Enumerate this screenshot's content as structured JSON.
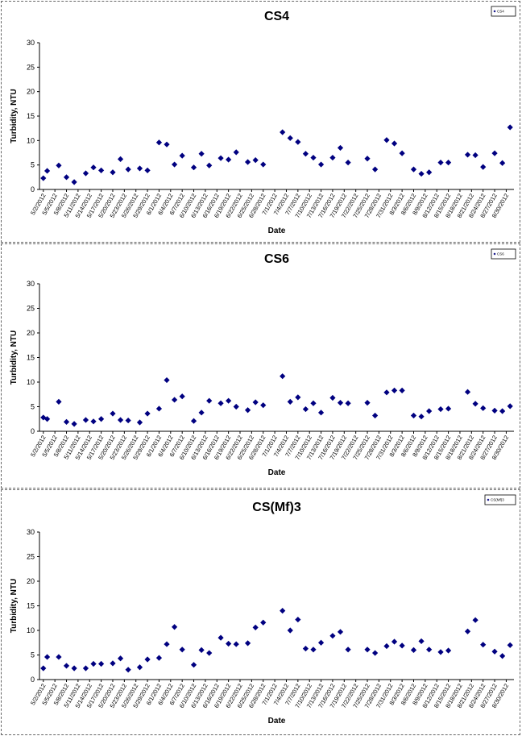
{
  "chart_data": [
    {
      "type": "scatter",
      "title": "CS4",
      "xlabel": "Date",
      "ylabel": "Turbidity, NTU",
      "ylim": [
        0,
        30
      ],
      "yticks": [
        0,
        5,
        10,
        15,
        20,
        25,
        30
      ],
      "legend": "top-right",
      "marker_color": "#000080",
      "x_tick_labels": [
        "5/2/2012",
        "5/5/2012",
        "5/8/2012",
        "5/11/2012",
        "5/14/2012",
        "5/17/2012",
        "5/20/2012",
        "5/23/2012",
        "5/26/2012",
        "5/29/2012",
        "6/1/2012",
        "6/4/2012",
        "6/7/2012",
        "6/10/2012",
        "6/13/2012",
        "6/16/2012",
        "6/19/2012",
        "6/22/2012",
        "6/25/2012",
        "6/28/2012",
        "7/1/2012",
        "7/4/2012",
        "7/7/2012",
        "7/10/2012",
        "7/13/2012",
        "7/16/2012",
        "7/19/2012",
        "7/22/2012",
        "7/25/2012",
        "7/28/2012",
        "7/31/2012",
        "8/3/2012",
        "8/6/2012",
        "8/9/2012",
        "8/12/2012",
        "8/15/2012",
        "8/18/2012",
        "8/21/2012",
        "8/24/2012",
        "8/27/2012",
        "8/30/2012"
      ],
      "series": [
        {
          "name": "CS4",
          "x": [
            "5/2/2012",
            "5/3/2012",
            "5/6/2012",
            "5/8/2012",
            "5/10/2012",
            "5/13/2012",
            "5/15/2012",
            "5/17/2012",
            "5/20/2012",
            "5/22/2012",
            "5/24/2012",
            "5/27/2012",
            "5/29/2012",
            "6/1/2012",
            "6/3/2012",
            "6/5/2012",
            "6/7/2012",
            "6/10/2012",
            "6/12/2012",
            "6/14/2012",
            "6/17/2012",
            "6/19/2012",
            "6/21/2012",
            "6/24/2012",
            "6/26/2012",
            "6/28/2012",
            "7/3/2012",
            "7/5/2012",
            "7/7/2012",
            "7/9/2012",
            "7/11/2012",
            "7/13/2012",
            "7/16/2012",
            "7/18/2012",
            "7/20/2012",
            "7/25/2012",
            "7/27/2012",
            "7/30/2012",
            "8/1/2012",
            "8/3/2012",
            "8/6/2012",
            "8/8/2012",
            "8/10/2012",
            "8/13/2012",
            "8/15/2012",
            "8/20/2012",
            "8/22/2012",
            "8/24/2012",
            "8/27/2012",
            "8/29/2012",
            "8/31/2012"
          ],
          "y": [
            2.3,
            3.8,
            4.9,
            2.5,
            1.5,
            3.3,
            4.5,
            3.9,
            3.5,
            6.2,
            4.1,
            4.3,
            3.9,
            9.6,
            9.2,
            5.1,
            6.9,
            4.5,
            7.3,
            4.9,
            6.4,
            6.1,
            7.6,
            5.6,
            6.0,
            5.1,
            11.7,
            10.5,
            9.7,
            7.3,
            6.5,
            5.1,
            6.5,
            8.5,
            5.5,
            6.3,
            4.1,
            10.1,
            9.4,
            7.4,
            4.1,
            3.2,
            3.5,
            5.5,
            5.5,
            7.1,
            7.0,
            4.6,
            7.4,
            5.4,
            12.7
          ]
        }
      ]
    },
    {
      "type": "scatter",
      "title": "CS6",
      "xlabel": "Date",
      "ylabel": "Turbidity, NTU",
      "ylim": [
        0,
        30
      ],
      "yticks": [
        0,
        5,
        10,
        15,
        20,
        25,
        30
      ],
      "legend": "top-right",
      "marker_color": "#000080",
      "x_tick_labels": [
        "5/2/2012",
        "5/5/2012",
        "5/8/2012",
        "5/11/2012",
        "5/14/2012",
        "5/17/2012",
        "5/20/2012",
        "5/23/2012",
        "5/26/2012",
        "5/29/2012",
        "6/1/2012",
        "6/4/2012",
        "6/7/2012",
        "6/10/2012",
        "6/13/2012",
        "6/16/2012",
        "6/19/2012",
        "6/22/2012",
        "6/25/2012",
        "6/28/2012",
        "7/1/2012",
        "7/4/2012",
        "7/7/2012",
        "7/10/2012",
        "7/13/2012",
        "7/16/2012",
        "7/19/2012",
        "7/22/2012",
        "7/25/2012",
        "7/28/2012",
        "7/31/2012",
        "8/3/2012",
        "8/6/2012",
        "8/9/2012",
        "8/12/2012",
        "8/15/2012",
        "8/18/2012",
        "8/21/2012",
        "8/24/2012",
        "8/27/2012",
        "8/30/2012"
      ],
      "series": [
        {
          "name": "CS6",
          "x": [
            "5/2/2012",
            "5/3/2012",
            "5/6/2012",
            "5/8/2012",
            "5/10/2012",
            "5/13/2012",
            "5/15/2012",
            "5/17/2012",
            "5/20/2012",
            "5/22/2012",
            "5/24/2012",
            "5/27/2012",
            "5/29/2012",
            "6/1/2012",
            "6/3/2012",
            "6/5/2012",
            "6/7/2012",
            "6/10/2012",
            "6/12/2012",
            "6/14/2012",
            "6/17/2012",
            "6/19/2012",
            "6/21/2012",
            "6/24/2012",
            "6/26/2012",
            "6/28/2012",
            "7/3/2012",
            "7/5/2012",
            "7/7/2012",
            "7/9/2012",
            "7/11/2012",
            "7/13/2012",
            "7/16/2012",
            "7/18/2012",
            "7/20/2012",
            "7/25/2012",
            "7/27/2012",
            "7/30/2012",
            "8/1/2012",
            "8/3/2012",
            "8/6/2012",
            "8/8/2012",
            "8/10/2012",
            "8/13/2012",
            "8/15/2012",
            "8/20/2012",
            "8/22/2012",
            "8/24/2012",
            "8/27/2012",
            "8/29/2012",
            "8/31/2012"
          ],
          "y": [
            2.8,
            2.5,
            6.0,
            1.9,
            1.5,
            2.3,
            2.0,
            2.5,
            3.6,
            2.3,
            2.2,
            1.8,
            3.6,
            4.6,
            10.4,
            6.4,
            7.1,
            2.1,
            3.8,
            6.2,
            5.7,
            6.2,
            5.0,
            4.3,
            5.9,
            5.3,
            11.2,
            6.0,
            6.9,
            4.5,
            5.7,
            3.8,
            6.8,
            5.8,
            5.7,
            5.8,
            3.2,
            7.9,
            8.3,
            8.3,
            3.2,
            3.0,
            4.1,
            4.5,
            4.6,
            8.0,
            5.6,
            4.7,
            4.2,
            4.1,
            5.1
          ]
        }
      ]
    },
    {
      "type": "scatter",
      "title": "CS(Mf)3",
      "xlabel": "Date",
      "ylabel": "Turbidity, NTU",
      "ylim": [
        0,
        30
      ],
      "yticks": [
        0,
        5,
        10,
        15,
        20,
        25,
        30
      ],
      "legend": "top-right",
      "marker_color": "#000080",
      "x_tick_labels": [
        "5/2/2012",
        "5/5/2012",
        "5/8/2012",
        "5/11/2012",
        "5/14/2012",
        "5/17/2012",
        "5/20/2012",
        "5/23/2012",
        "5/26/2012",
        "5/29/2012",
        "6/1/2012",
        "6/4/2012",
        "6/7/2012",
        "6/10/2012",
        "6/13/2012",
        "6/16/2012",
        "6/19/2012",
        "6/22/2012",
        "6/25/2012",
        "6/28/2012",
        "7/1/2012",
        "7/4/2012",
        "7/7/2012",
        "7/10/2012",
        "7/13/2012",
        "7/16/2012",
        "7/19/2012",
        "7/22/2012",
        "7/25/2012",
        "7/28/2012",
        "7/31/2012",
        "8/3/2012",
        "8/6/2012",
        "8/9/2012",
        "8/12/2012",
        "8/15/2012",
        "8/18/2012",
        "8/21/2012",
        "8/24/2012",
        "8/27/2012",
        "8/30/2012"
      ],
      "series": [
        {
          "name": "CS(Mf)3",
          "x": [
            "5/2/2012",
            "5/3/2012",
            "5/6/2012",
            "5/8/2012",
            "5/10/2012",
            "5/13/2012",
            "5/15/2012",
            "5/17/2012",
            "5/20/2012",
            "5/22/2012",
            "5/24/2012",
            "5/27/2012",
            "5/29/2012",
            "6/1/2012",
            "6/3/2012",
            "6/5/2012",
            "6/7/2012",
            "6/10/2012",
            "6/12/2012",
            "6/14/2012",
            "6/17/2012",
            "6/19/2012",
            "6/21/2012",
            "6/24/2012",
            "6/26/2012",
            "6/28/2012",
            "7/3/2012",
            "7/5/2012",
            "7/7/2012",
            "7/9/2012",
            "7/11/2012",
            "7/13/2012",
            "7/16/2012",
            "7/18/2012",
            "7/20/2012",
            "7/25/2012",
            "7/27/2012",
            "7/30/2012",
            "8/1/2012",
            "8/3/2012",
            "8/6/2012",
            "8/8/2012",
            "8/10/2012",
            "8/13/2012",
            "8/15/2012",
            "8/20/2012",
            "8/22/2012",
            "8/24/2012",
            "8/27/2012",
            "8/29/2012",
            "8/31/2012"
          ],
          "y": [
            2.3,
            4.6,
            4.6,
            2.8,
            2.3,
            2.3,
            3.2,
            3.2,
            3.3,
            4.3,
            2.0,
            2.5,
            4.1,
            4.4,
            7.2,
            10.7,
            6.1,
            3.0,
            6.0,
            5.4,
            8.5,
            7.3,
            7.2,
            7.4,
            10.6,
            11.6,
            14.0,
            10.0,
            12.2,
            6.3,
            6.1,
            7.5,
            8.9,
            9.7,
            6.1,
            6.1,
            5.4,
            6.8,
            7.7,
            6.9,
            6.0,
            7.8,
            6.1,
            5.6,
            5.9,
            9.8,
            12.1,
            7.1,
            5.7,
            4.8,
            7.0
          ]
        }
      ]
    }
  ]
}
